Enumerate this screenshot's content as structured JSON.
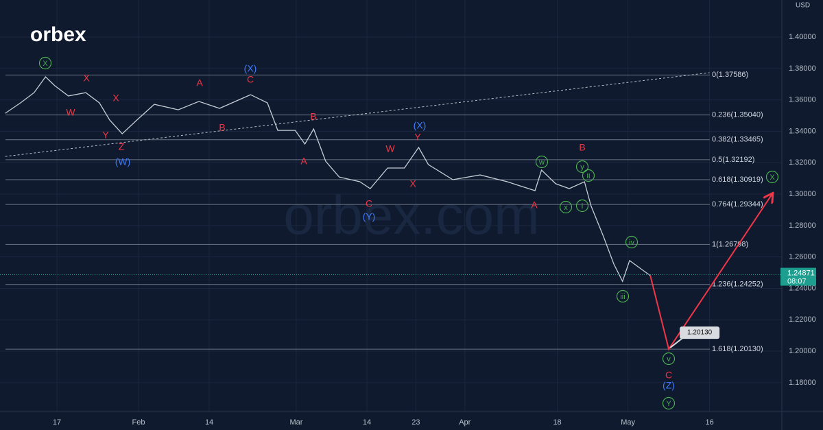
{
  "chart_data": {
    "type": "line",
    "logo": "orbex",
    "watermark": "orbex.com",
    "currency": "USD",
    "xlim": [
      6.53,
      150.29
    ],
    "ylim": [
      1.1616,
      1.4236
    ],
    "xticks": [
      {
        "value": 17,
        "label": "17"
      },
      {
        "value": 32,
        "label": "Feb"
      },
      {
        "value": 45,
        "label": "14"
      },
      {
        "value": 61,
        "label": "Mar"
      },
      {
        "value": 74,
        "label": "14"
      },
      {
        "value": 83,
        "label": "23"
      },
      {
        "value": 92,
        "label": "Apr"
      },
      {
        "value": 109,
        "label": "18"
      },
      {
        "value": 122,
        "label": "May"
      },
      {
        "value": 137,
        "label": "16"
      }
    ],
    "yticks": [
      {
        "value": 1.18,
        "label": "1.18000"
      },
      {
        "value": 1.2,
        "label": "1.20000"
      },
      {
        "value": 1.22,
        "label": "1.22000"
      },
      {
        "value": 1.24,
        "label": "1.24000"
      },
      {
        "value": 1.26,
        "label": "1.26000"
      },
      {
        "value": 1.28,
        "label": "1.28000"
      },
      {
        "value": 1.3,
        "label": "1.30000"
      },
      {
        "value": 1.32,
        "label": "1.32000"
      },
      {
        "value": 1.34,
        "label": "1.34000"
      },
      {
        "value": 1.36,
        "label": "1.36000"
      },
      {
        "value": 1.38,
        "label": "1.38000"
      },
      {
        "value": 1.4,
        "label": "1.40000"
      }
    ],
    "grid": true,
    "price": {
      "color": "#c5ccd6",
      "x": [
        7.5,
        10.3,
        12.8,
        14.9,
        16.6,
        19.1,
        22.3,
        24.8,
        26.7,
        29.0,
        31.7,
        34.9,
        39.3,
        43.1,
        46.9,
        52.6,
        55.7,
        57.6,
        60.8,
        62.6,
        64.2,
        66.4,
        68.9,
        72.7,
        74.6,
        77.8,
        80.9,
        83.5,
        85.3,
        89.8,
        94.8,
        99.8,
        104.9,
        106.1,
        108.7,
        111.2,
        114.0,
        115.2,
        117.5,
        119.4,
        121.0,
        122.3,
        124.4,
        126.1
      ],
      "values": [
        1.3515,
        1.3581,
        1.3646,
        1.3747,
        1.369,
        1.3625,
        1.3646,
        1.3581,
        1.3472,
        1.3384,
        1.3472,
        1.3572,
        1.3537,
        1.359,
        1.3546,
        1.3633,
        1.3581,
        1.3406,
        1.3406,
        1.3319,
        1.3415,
        1.321,
        1.3109,
        1.3079,
        1.3035,
        1.3166,
        1.3166,
        1.3297,
        1.3188,
        1.3092,
        1.3122,
        1.3079,
        1.3022,
        1.3153,
        1.3066,
        1.3035,
        1.3079,
        1.2926,
        1.2729,
        1.2555,
        1.2445,
        1.2577,
        1.2524,
        1.2481
      ]
    },
    "projection": {
      "color": "#f23645",
      "x": [
        126.1,
        129.5,
        148.5
      ],
      "values": [
        1.2481,
        1.2013,
        1.3
      ]
    },
    "trendline": {
      "color": "#b8c0cc",
      "x": [
        7.5,
        137.0
      ],
      "values": [
        1.324,
        1.3773
      ]
    },
    "fib_levels": [
      {
        "value": 1.37586,
        "label": "0(1.37586)"
      },
      {
        "value": 1.3504,
        "label": "0.236(1.35040)"
      },
      {
        "value": 1.33465,
        "label": "0.382(1.33465)"
      },
      {
        "value": 1.32192,
        "label": "0.5(1.32192)"
      },
      {
        "value": 1.30919,
        "label": "0.618(1.30919)"
      },
      {
        "value": 1.29344,
        "label": "0.764(1.29344)"
      },
      {
        "value": 1.26798,
        "label": "1(1.26798)"
      },
      {
        "value": 1.24252,
        "label": "1.236(1.24252)"
      },
      {
        "value": 1.2013,
        "label": "1.618(1.20130)"
      }
    ],
    "target": {
      "value": 1.2013,
      "label": "1.20130"
    },
    "last_price": {
      "value": 1.24871,
      "label": "1.24871",
      "countdown": "08:07",
      "color": "#1e9e8e"
    },
    "wave_labels": [
      {
        "text": "X",
        "color": "#4caf50",
        "circled": true
      },
      {
        "text": "w",
        "color": "#4caf50",
        "circled": true
      },
      {
        "text": "y",
        "color": "#4caf50",
        "circled": true
      },
      {
        "text": "ii",
        "color": "#4caf50",
        "circled": true
      },
      {
        "text": "x",
        "color": "#4caf50",
        "circled": true
      },
      {
        "text": "i",
        "color": "#4caf50",
        "circled": true
      },
      {
        "text": "iv",
        "color": "#4caf50",
        "circled": true
      },
      {
        "text": "iii",
        "color": "#4caf50",
        "circled": true
      },
      {
        "text": "v",
        "color": "#4caf50",
        "circled": true
      },
      {
        "text": "Y",
        "color": "#4caf50",
        "circled": true
      },
      {
        "text": "X",
        "color": "#4caf50",
        "circled": true
      },
      {
        "text": "X",
        "color": "#f23645"
      },
      {
        "text": "W",
        "color": "#f23645"
      },
      {
        "text": "X",
        "color": "#f23645"
      },
      {
        "text": "Y",
        "color": "#f23645"
      },
      {
        "text": "Z",
        "color": "#f23645"
      },
      {
        "text": "A",
        "color": "#f23645"
      },
      {
        "text": "C",
        "color": "#f23645"
      },
      {
        "text": "B",
        "color": "#f23645"
      },
      {
        "text": "B",
        "color": "#f23645"
      },
      {
        "text": "A",
        "color": "#f23645"
      },
      {
        "text": "W",
        "color": "#f23645"
      },
      {
        "text": "Y",
        "color": "#f23645"
      },
      {
        "text": "X",
        "color": "#f23645"
      },
      {
        "text": "C",
        "color": "#f23645"
      },
      {
        "text": "A",
        "color": "#f23645"
      },
      {
        "text": "B",
        "color": "#f23645"
      },
      {
        "text": "C",
        "color": "#f23645"
      },
      {
        "text": "(X)",
        "color": "#3d7bff"
      },
      {
        "text": "(W)",
        "color": "#3d7bff"
      },
      {
        "text": "(X)",
        "color": "#3d7bff"
      },
      {
        "text": "(Y)",
        "color": "#3d7bff"
      },
      {
        "text": "(Z)",
        "color": "#3d7bff"
      }
    ]
  }
}
